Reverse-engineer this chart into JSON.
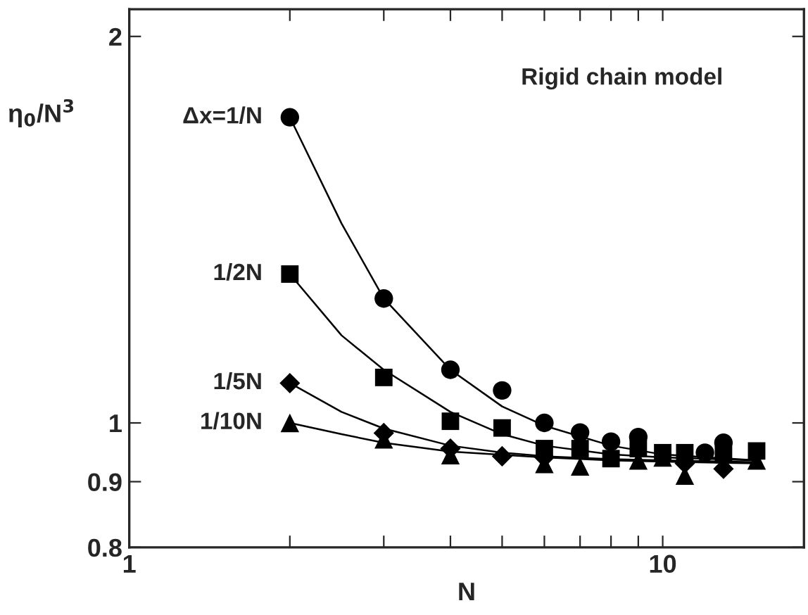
{
  "chart_data": {
    "type": "scatter",
    "xlabel": "N",
    "ylabel": "η$_{0}$/N$^{3}$",
    "annotations": [
      "Rigid chain model"
    ],
    "log": "xy",
    "xlim": [
      1,
      18.4
    ],
    "ylim": [
      0.8,
      2.1
    ],
    "xticks": [
      1,
      {
        "value": 2,
        "label": null
      },
      {
        "value": 3,
        "label": null
      },
      {
        "value": 4,
        "label": null
      },
      {
        "value": 5,
        "label": null
      },
      {
        "value": 6,
        "label": null
      },
      {
        "value": 7,
        "label": null
      },
      {
        "value": 8,
        "label": null
      },
      {
        "value": 9,
        "label": null
      },
      10
    ],
    "yticks": [
      0.8,
      0.9,
      1,
      2
    ],
    "grid": false,
    "legend": false,
    "series": [
      {
        "name": "Δx=1/N",
        "color": "#000000",
        "marker": "circle",
        "x": [
          2,
          3,
          4,
          5,
          6,
          7,
          8,
          9,
          12,
          13
        ],
        "values": [
          1.73,
          1.25,
          1.1,
          1.06,
          1.0,
          0.983,
          0.967,
          0.975,
          0.948,
          0.965
        ]
      },
      {
        "name": "1/2N",
        "color": "#000000",
        "marker": "square",
        "x": [
          2,
          3,
          4,
          5,
          6,
          7,
          8,
          9,
          10,
          11,
          13,
          15
        ],
        "values": [
          1.306,
          1.085,
          1.003,
          0.991,
          0.955,
          0.955,
          0.938,
          0.955,
          0.948,
          0.948,
          0.945,
          0.951
        ]
      },
      {
        "name": "1/5N",
        "color": "#000000",
        "marker": "diamond",
        "x": [
          2,
          3,
          4,
          5,
          6,
          11,
          13
        ],
        "values": [
          1.074,
          0.982,
          0.955,
          0.942,
          0.94,
          0.93,
          0.921
        ]
      },
      {
        "name": "1/10N",
        "color": "#000000",
        "marker": "triangle",
        "x": [
          2,
          3,
          4,
          6,
          7,
          9,
          10,
          11,
          15
        ],
        "values": [
          1.0,
          0.971,
          0.944,
          0.929,
          0.925,
          0.935,
          0.94,
          0.91,
          0.935
        ]
      },
      {
        "type": "line",
        "color": "#000000",
        "x": [
          2,
          2.5,
          3,
          4,
          5,
          6,
          8,
          10,
          15
        ],
        "values": [
          1.73,
          1.43,
          1.25,
          1.1,
          1.03,
          0.995,
          0.96,
          0.945,
          0.935
        ]
      },
      {
        "type": "line",
        "color": "#000000",
        "x": [
          2,
          2.5,
          3,
          4,
          5,
          6,
          8,
          10,
          15
        ],
        "values": [
          1.306,
          1.17,
          1.1,
          1.02,
          0.98,
          0.96,
          0.945,
          0.94,
          0.935
        ]
      },
      {
        "type": "line",
        "color": "#000000",
        "x": [
          2,
          2.5,
          3,
          4,
          5,
          6,
          8,
          10,
          15
        ],
        "values": [
          1.074,
          1.02,
          0.99,
          0.96,
          0.948,
          0.942,
          0.937,
          0.935,
          0.932
        ]
      },
      {
        "type": "line",
        "color": "#000000",
        "x": [
          2,
          2.5,
          3,
          4,
          6,
          8,
          10,
          15
        ],
        "values": [
          1.0,
          0.98,
          0.965,
          0.95,
          0.94,
          0.935,
          0.933,
          0.93
        ]
      }
    ]
  }
}
